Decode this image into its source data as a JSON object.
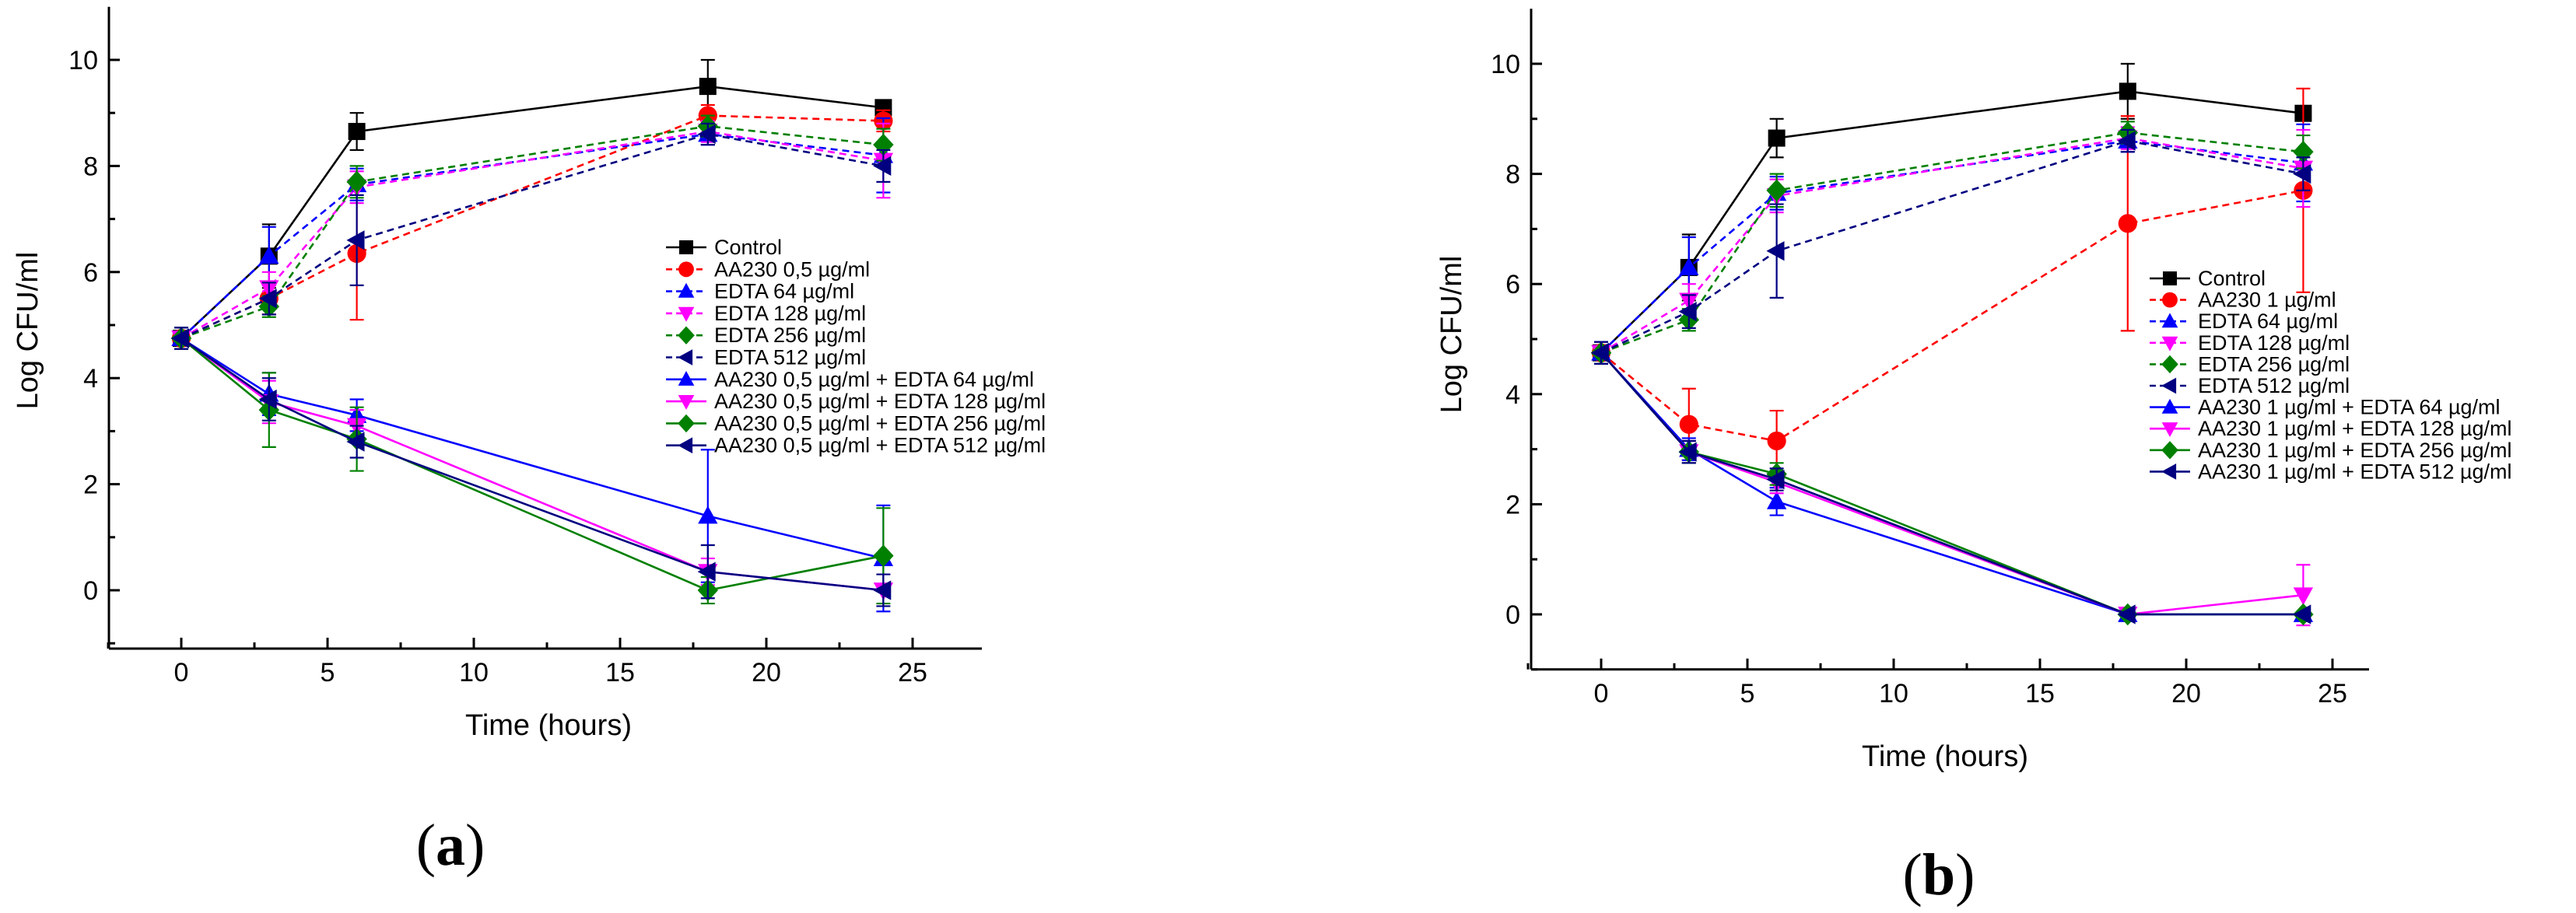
{
  "chart_data": [
    {
      "type": "line",
      "panel_label": "a",
      "xlabel": "Time (hours)",
      "ylabel": "Log CFU/ml",
      "xlim": [
        -2.5,
        27.5
      ],
      "ylim": [
        -1.1,
        11
      ],
      "xticks": [
        0,
        5,
        10,
        15,
        20,
        25
      ],
      "yticks": [
        0,
        2,
        4,
        6,
        8,
        10
      ],
      "legend_position": "center-right",
      "x": [
        0,
        3,
        6,
        18,
        24
      ],
      "series": [
        {
          "name": "Control",
          "color": "#000000",
          "marker": "square",
          "dashed": false,
          "values": [
            4.75,
            6.3,
            8.65,
            9.5,
            9.1
          ],
          "errors": [
            0.2,
            0.6,
            0.35,
            0.5,
            0.1
          ]
        },
        {
          "name": "AA230 0,5 µg/ml",
          "color": "#ff0000",
          "marker": "circle",
          "dashed": true,
          "values": [
            4.75,
            5.5,
            6.35,
            8.95,
            8.85
          ],
          "errors": [
            0.2,
            0.3,
            1.25,
            0.2,
            0.2
          ]
        },
        {
          "name": "EDTA 64 µg/ml",
          "color": "#0000ff",
          "marker": "triangle-up",
          "dashed": true,
          "values": [
            4.75,
            6.3,
            7.65,
            8.6,
            8.2
          ],
          "errors": [
            0.2,
            0.55,
            0.3,
            0.2,
            0.7
          ]
        },
        {
          "name": "EDTA 128 µg/ml",
          "color": "#ff00ff",
          "marker": "triangle-down",
          "dashed": true,
          "values": [
            4.75,
            5.7,
            7.6,
            8.65,
            8.1
          ],
          "errors": [
            0.2,
            0.3,
            0.3,
            0.2,
            0.7
          ]
        },
        {
          "name": "EDTA 256 µg/ml",
          "color": "#008000",
          "marker": "diamond",
          "dashed": true,
          "values": [
            4.75,
            5.35,
            7.7,
            8.75,
            8.4
          ],
          "errors": [
            0.2,
            0.2,
            0.3,
            0.2,
            0.3
          ]
        },
        {
          "name": "EDTA 512 µg/ml",
          "color": "#000080",
          "marker": "triangle-left",
          "dashed": true,
          "values": [
            4.75,
            5.5,
            6.6,
            8.6,
            8.0
          ],
          "errors": [
            0.2,
            0.3,
            0.85,
            0.2,
            0.3
          ]
        },
        {
          "name": "AA230 0,5 µg/ml + EDTA 64 µg/ml",
          "color": "#0000ff",
          "marker": "triangle-up",
          "dashed": false,
          "values": [
            4.75,
            3.7,
            3.3,
            1.4,
            0.6
          ],
          "errors": [
            0.2,
            0.4,
            0.3,
            1.25,
            1.0
          ]
        },
        {
          "name": "AA230 0,5 µg/ml + EDTA 128 µg/ml",
          "color": "#ff00ff",
          "marker": "triangle-down",
          "dashed": false,
          "values": [
            4.75,
            3.55,
            3.1,
            0.35,
            0.0
          ],
          "errors": [
            0.2,
            0.4,
            0.3,
            0.25,
            0.0
          ]
        },
        {
          "name": "AA230 0,5 µg/ml + EDTA 256 µg/ml",
          "color": "#008000",
          "marker": "diamond",
          "dashed": false,
          "values": [
            4.75,
            3.4,
            2.85,
            0.0,
            0.65
          ],
          "errors": [
            0.2,
            0.7,
            0.6,
            0.25,
            0.9
          ]
        },
        {
          "name": "AA230 0,5 µg/ml + EDTA 512 µg/ml",
          "color": "#000080",
          "marker": "triangle-left",
          "dashed": false,
          "values": [
            4.75,
            3.6,
            2.8,
            0.35,
            0.0
          ],
          "errors": [
            0.2,
            0.4,
            0.3,
            0.5,
            0.3
          ]
        }
      ]
    },
    {
      "type": "line",
      "panel_label": "b",
      "xlabel": "Time (hours)",
      "ylabel": "Log CFU/ml",
      "xlim": [
        -2.5,
        27.5
      ],
      "ylim": [
        -1.0,
        11
      ],
      "xticks": [
        0,
        5,
        10,
        15,
        20,
        25
      ],
      "yticks": [
        0,
        2,
        4,
        6,
        8,
        10
      ],
      "legend_position": "center-right",
      "x": [
        0,
        3,
        6,
        18,
        24
      ],
      "series": [
        {
          "name": "Control",
          "color": "#000000",
          "marker": "square",
          "dashed": false,
          "values": [
            4.75,
            6.3,
            8.65,
            9.5,
            9.1
          ],
          "errors": [
            0.2,
            0.6,
            0.35,
            0.5,
            0.1
          ]
        },
        {
          "name": "AA230 1 µg/ml",
          "color": "#ff0000",
          "marker": "circle",
          "dashed": true,
          "values": [
            4.75,
            3.45,
            3.15,
            7.1,
            7.7
          ],
          "errors": [
            0.2,
            0.65,
            0.55,
            1.95,
            1.85
          ]
        },
        {
          "name": "EDTA 64 µg/ml",
          "color": "#0000ff",
          "marker": "triangle-up",
          "dashed": true,
          "values": [
            4.75,
            6.3,
            7.65,
            8.6,
            8.2
          ],
          "errors": [
            0.2,
            0.55,
            0.3,
            0.2,
            0.7
          ]
        },
        {
          "name": "EDTA 128 µg/ml",
          "color": "#ff00ff",
          "marker": "triangle-down",
          "dashed": true,
          "values": [
            4.75,
            5.7,
            7.6,
            8.65,
            8.1
          ],
          "errors": [
            0.2,
            0.3,
            0.3,
            0.2,
            0.7
          ]
        },
        {
          "name": "EDTA 256 µg/ml",
          "color": "#008000",
          "marker": "diamond",
          "dashed": true,
          "values": [
            4.75,
            5.35,
            7.7,
            8.75,
            8.4
          ],
          "errors": [
            0.2,
            0.2,
            0.3,
            0.2,
            0.3
          ]
        },
        {
          "name": "EDTA 512 µg/ml",
          "color": "#000080",
          "marker": "triangle-left",
          "dashed": true,
          "values": [
            4.75,
            5.5,
            6.6,
            8.6,
            8.0
          ],
          "errors": [
            0.2,
            0.3,
            0.85,
            0.2,
            0.3
          ]
        },
        {
          "name": "AA230 1 µg/ml + EDTA 64 µg/ml",
          "color": "#0000ff",
          "marker": "triangle-up",
          "dashed": false,
          "values": [
            4.75,
            3.0,
            2.05,
            0.0,
            0.0
          ],
          "errors": [
            0.2,
            0.2,
            0.25,
            0.0,
            0.0
          ]
        },
        {
          "name": "AA230 1 µg/ml + EDTA 128 µg/ml",
          "color": "#ff00ff",
          "marker": "triangle-down",
          "dashed": false,
          "values": [
            4.75,
            2.95,
            2.4,
            0.0,
            0.35
          ],
          "errors": [
            0.2,
            0.2,
            0.2,
            0.0,
            0.55
          ]
        },
        {
          "name": "AA230 1 µg/ml + EDTA 256 µg/ml",
          "color": "#008000",
          "marker": "diamond",
          "dashed": false,
          "values": [
            4.75,
            2.95,
            2.55,
            0.0,
            0.0
          ],
          "errors": [
            0.2,
            0.2,
            0.2,
            0.0,
            0.0
          ]
        },
        {
          "name": "AA230 1 µg/ml + EDTA 512 µg/ml",
          "color": "#000080",
          "marker": "triangle-left",
          "dashed": false,
          "values": [
            4.75,
            2.95,
            2.45,
            0.0,
            0.0
          ],
          "errors": [
            0.2,
            0.2,
            0.2,
            0.0,
            0.0
          ]
        }
      ]
    }
  ]
}
